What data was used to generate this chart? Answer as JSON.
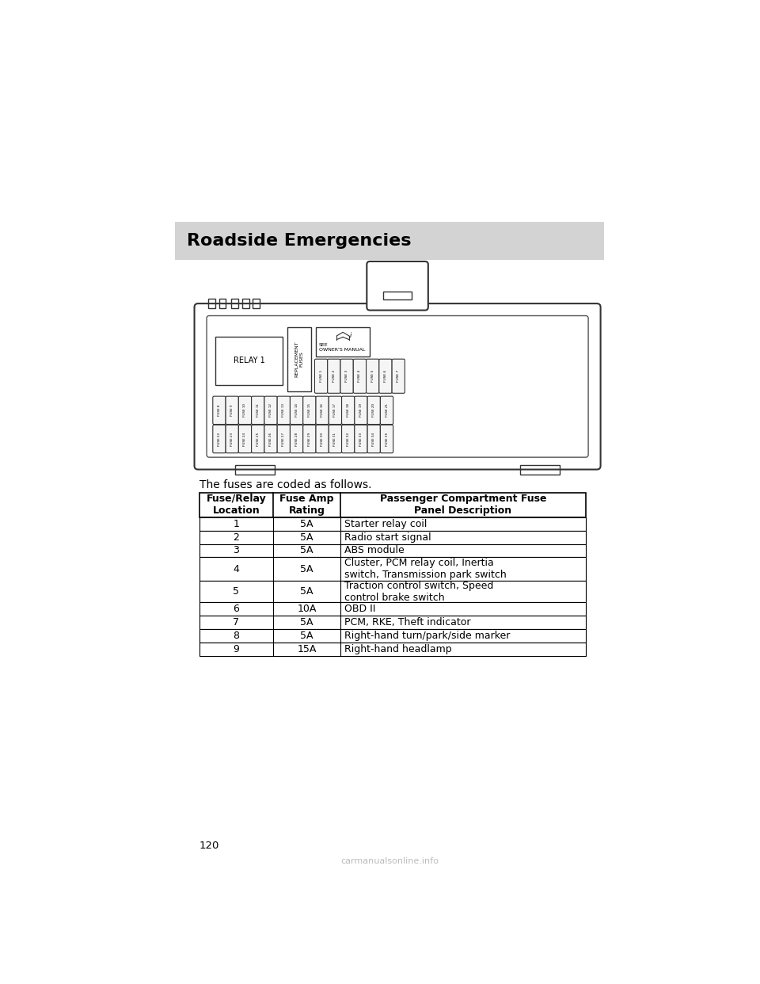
{
  "page_bg": "#ffffff",
  "header_bg": "#d3d3d3",
  "header_text": "Roadside Emergencies",
  "header_text_color": "#000000",
  "header_fontsize": 16,
  "body_text": "The fuses are coded as follows.",
  "body_fontsize": 10,
  "table_header_row1": [
    "Fuse/Relay\nLocation",
    "Fuse Amp\nRating",
    "Passenger Compartment Fuse\nPanel Description"
  ],
  "table_rows": [
    [
      "1",
      "5A",
      "Starter relay coil"
    ],
    [
      "2",
      "5A",
      "Radio start signal"
    ],
    [
      "3",
      "5A",
      "ABS module"
    ],
    [
      "4",
      "5A",
      "Cluster, PCM relay coil, Inertia\nswitch, Transmission park switch"
    ],
    [
      "5",
      "5A",
      "Traction control switch, Speed\ncontrol brake switch"
    ],
    [
      "6",
      "10A",
      "OBD II"
    ],
    [
      "7",
      "5A",
      "PCM, RKE, Theft indicator"
    ],
    [
      "8",
      "5A",
      "Right-hand turn/park/side marker"
    ],
    [
      "9",
      "15A",
      "Right-hand headlamp"
    ]
  ],
  "page_number": "120",
  "watermark": "carmanualsonline.info",
  "fuse_label_top_row": [
    "FUSE 1",
    "FUSE 2",
    "FUSE 3",
    "FUSE 4",
    "FUSE 5",
    "FUSE 6",
    "FUSE 7"
  ],
  "fuse_label_mid_row": [
    "FUSE 8",
    "FUSE 9",
    "FUSE 10",
    "FUSE 11",
    "FUSE 12",
    "FUSE 13",
    "FUSE 14",
    "FUSE 15",
    "FUSE 16",
    "FUSE 17",
    "FUSE 18",
    "FUSE 19",
    "FUSE 20",
    "FUSE 21"
  ],
  "fuse_label_bot_row": [
    "FUSE 22",
    "FUSE 23",
    "FUSE 24",
    "FUSE 25",
    "FUSE 26",
    "FUSE 27",
    "FUSE 28",
    "FUSE 29",
    "FUSE 30",
    "FUSE 31",
    "FUSE 32",
    "FUSE 33",
    "FUSE 34",
    "FUSE 35"
  ]
}
